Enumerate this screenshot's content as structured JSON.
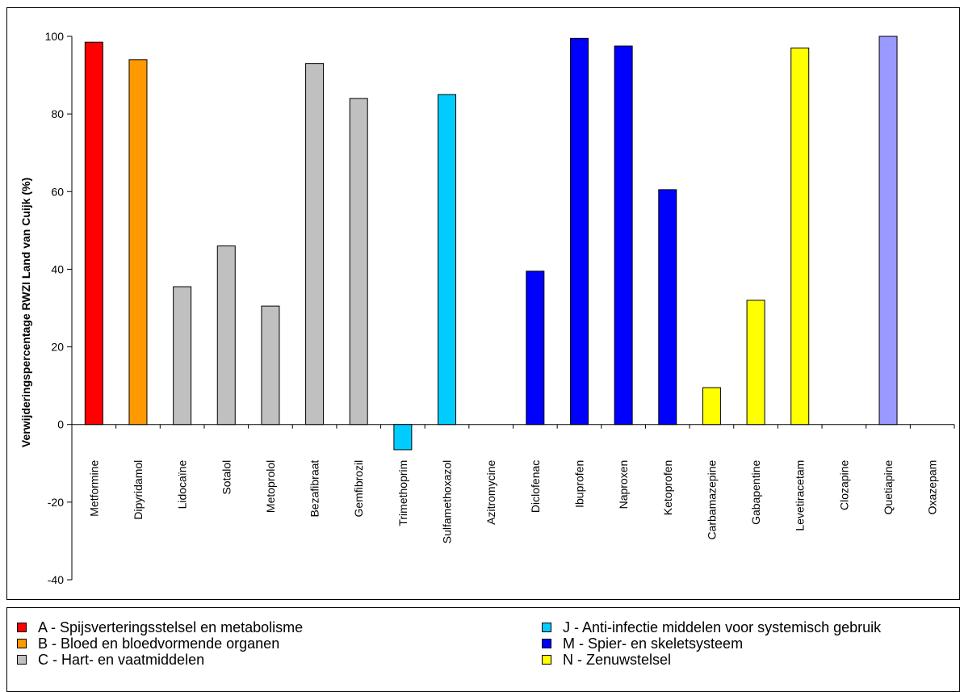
{
  "chart_data": {
    "type": "bar",
    "ylabel": "Verwijderingspercentage RWZI Land van Cuijk (%)",
    "xlabel": "",
    "ylim": [
      -40,
      100
    ],
    "yticks": [
      -40,
      -20,
      0,
      20,
      40,
      60,
      80,
      100
    ],
    "categories": [
      "Metformine",
      "Dipyridamol",
      "Lidocaïne",
      "Sotalol",
      "Metoprolol",
      "Bezafibraat",
      "Gemfibrozil",
      "Trimethoprim",
      "Sulfamethoxazol",
      "Azitromycine",
      "Diclofenac",
      "Ibuprofen",
      "Naproxen",
      "Ketoprofen",
      "Carbamazepine",
      "Gabapentine",
      "Levetiracetam",
      "Clozapine",
      "Quetiapine",
      "Oxazepam"
    ],
    "values": [
      98.5,
      94,
      35.5,
      46,
      30.5,
      93,
      84,
      -6.5,
      85,
      null,
      39.5,
      99.5,
      97.5,
      60.5,
      9.5,
      32,
      97,
      null,
      100,
      null
    ],
    "colors": [
      "#ff0000",
      "#ff9900",
      "#c0c0c0",
      "#c0c0c0",
      "#c0c0c0",
      "#c0c0c0",
      "#c0c0c0",
      "#00ccff",
      "#00ccff",
      "#00ccff",
      "#0000ff",
      "#0000ff",
      "#0000ff",
      "#0000ff",
      "#ffff00",
      "#ffff00",
      "#ffff00",
      "#9999ff",
      "#9999ff",
      "#9999ff"
    ],
    "grid": false,
    "legend_placement": "bottom"
  },
  "legend": {
    "items": [
      {
        "label": "A - Spijsverteringsstelsel en metabolisme",
        "color": "#ff0000"
      },
      {
        "label": "B - Bloed en bloedvormende organen",
        "color": "#ff9900"
      },
      {
        "label": "C - Hart- en vaatmiddelen",
        "color": "#c0c0c0"
      },
      {
        "label": "J - Anti-infectie middelen voor systemisch gebruik",
        "color": "#00ccff"
      },
      {
        "label": "M - Spier- en skeletsysteem",
        "color": "#0000ff"
      },
      {
        "label": "N - Zenuwstelsel",
        "color": "#ffff00"
      }
    ]
  }
}
